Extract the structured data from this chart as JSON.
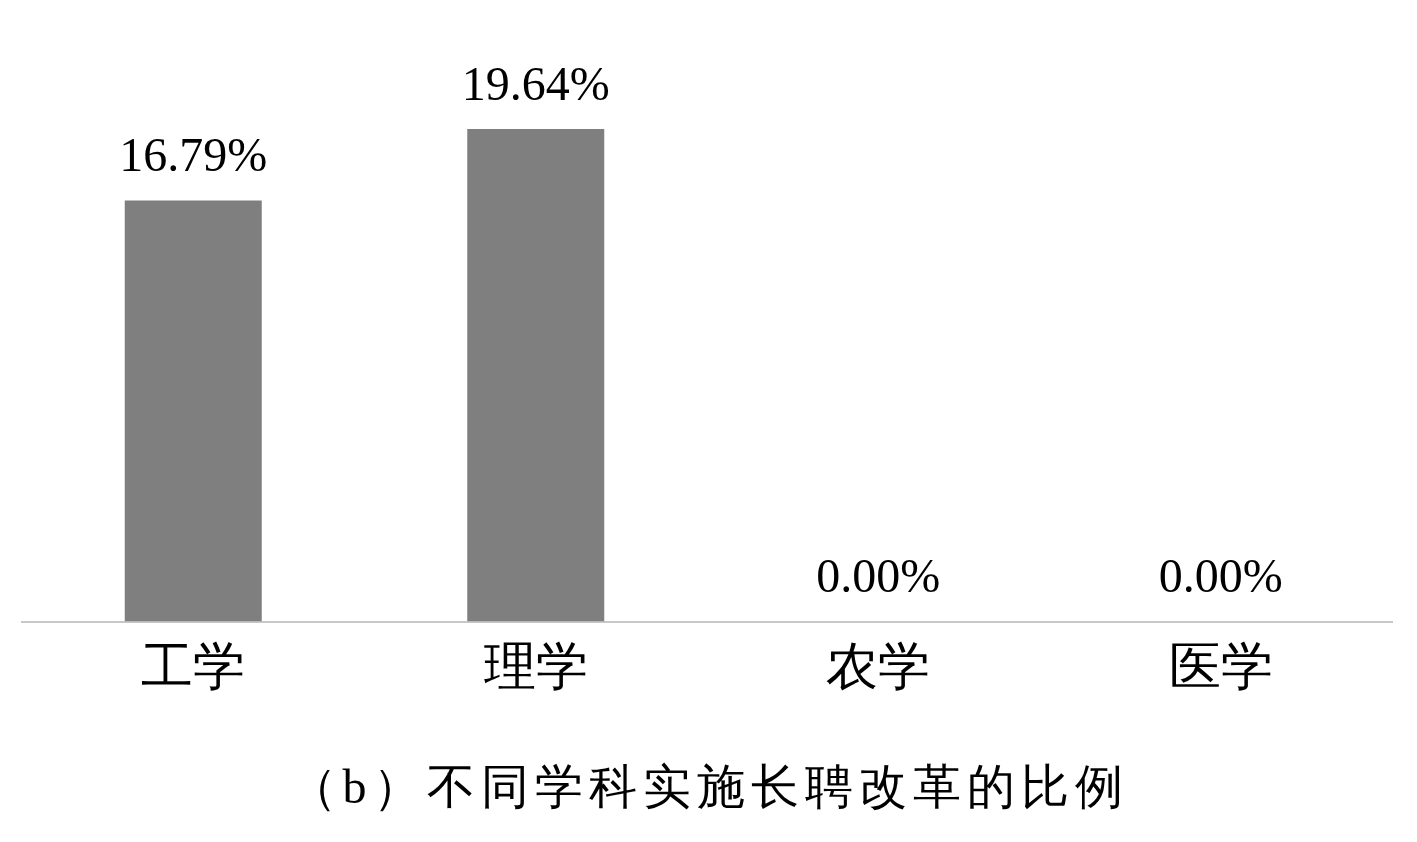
{
  "chart_data": {
    "type": "bar",
    "title": "（b）不同学科实施长聘改革的比例",
    "categories": [
      "工学",
      "理学",
      "农学",
      "医学"
    ],
    "values": [
      16.79,
      19.64,
      0,
      0
    ],
    "value_labels": [
      "16.79%",
      "19.64%",
      "0.00%",
      "0.00%"
    ],
    "color": "#7f7f7f",
    "grid": false,
    "legend": false
  }
}
